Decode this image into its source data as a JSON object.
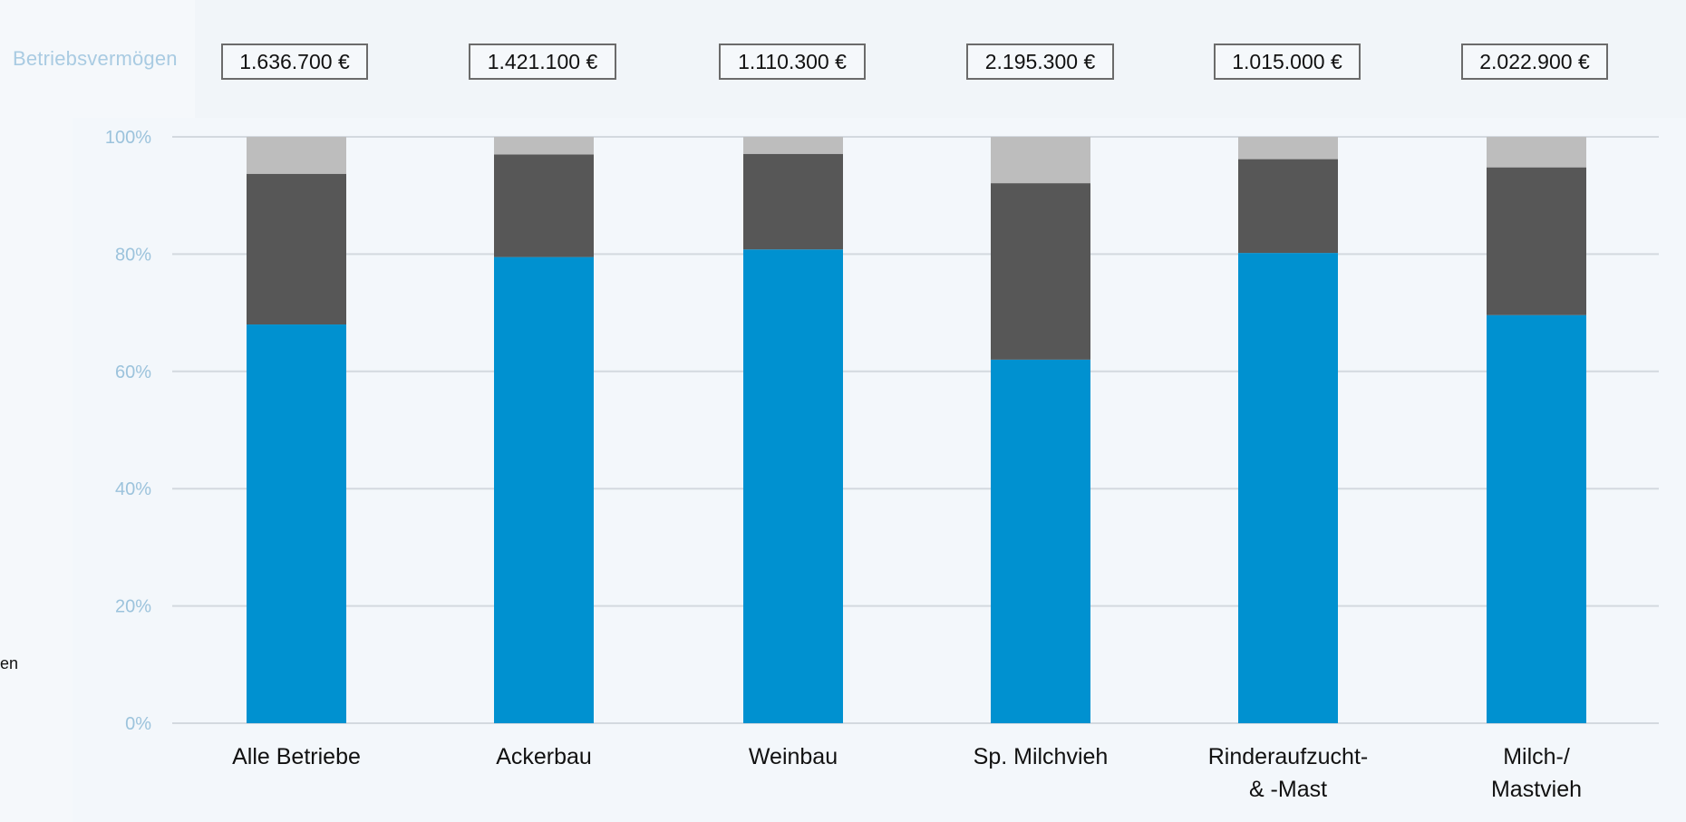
{
  "header": {
    "row_label": "Betriebsvermögen",
    "side_fragment": "en"
  },
  "values": [
    {
      "category": "Alle Betriebe",
      "text": "1.636.700 €"
    },
    {
      "category": "Ackerbau",
      "text": "1.421.100 €"
    },
    {
      "category": "Weinbau",
      "text": "1.110.300 €"
    },
    {
      "category": "Sp. Milchvieh",
      "text": "2.195.300 €"
    },
    {
      "category": "Rinderaufzucht- & -Mast",
      "text": "1.015.000 €"
    },
    {
      "category": "Milch-/ Mastvieh",
      "text": "2.022.900 €"
    }
  ],
  "colors": {
    "segment_1": "#0091d0",
    "segment_2": "#575757",
    "segment_3": "#bdbdbd",
    "grid": "#d3d9df",
    "tick": "#9cc3dc"
  },
  "chart_data": {
    "type": "bar",
    "stacked": true,
    "categories": [
      [
        "Alle Betriebe"
      ],
      [
        "Ackerbau"
      ],
      [
        "Weinbau"
      ],
      [
        "Sp. Milchvieh"
      ],
      [
        "Rinderaufzucht-",
        "& -Mast"
      ],
      [
        "Milch-/",
        "Mastvieh"
      ]
    ],
    "series": [
      {
        "values": [
          68.0,
          79.5,
          80.8,
          62.0,
          80.2,
          69.6
        ],
        "color": "#0091d0"
      },
      {
        "values": [
          25.7,
          17.5,
          16.3,
          30.1,
          16.0,
          25.2
        ],
        "color": "#575757"
      },
      {
        "values": [
          6.3,
          3.0,
          2.9,
          7.9,
          3.8,
          5.2
        ],
        "color": "#bdbdbd"
      }
    ],
    "ylim": [
      0,
      100
    ],
    "yticks": [
      "0%",
      "20%",
      "40%",
      "60%",
      "80%",
      "100%"
    ],
    "ytick_values": [
      0,
      20,
      40,
      60,
      80,
      100
    ],
    "grid": true,
    "legend": "none"
  }
}
